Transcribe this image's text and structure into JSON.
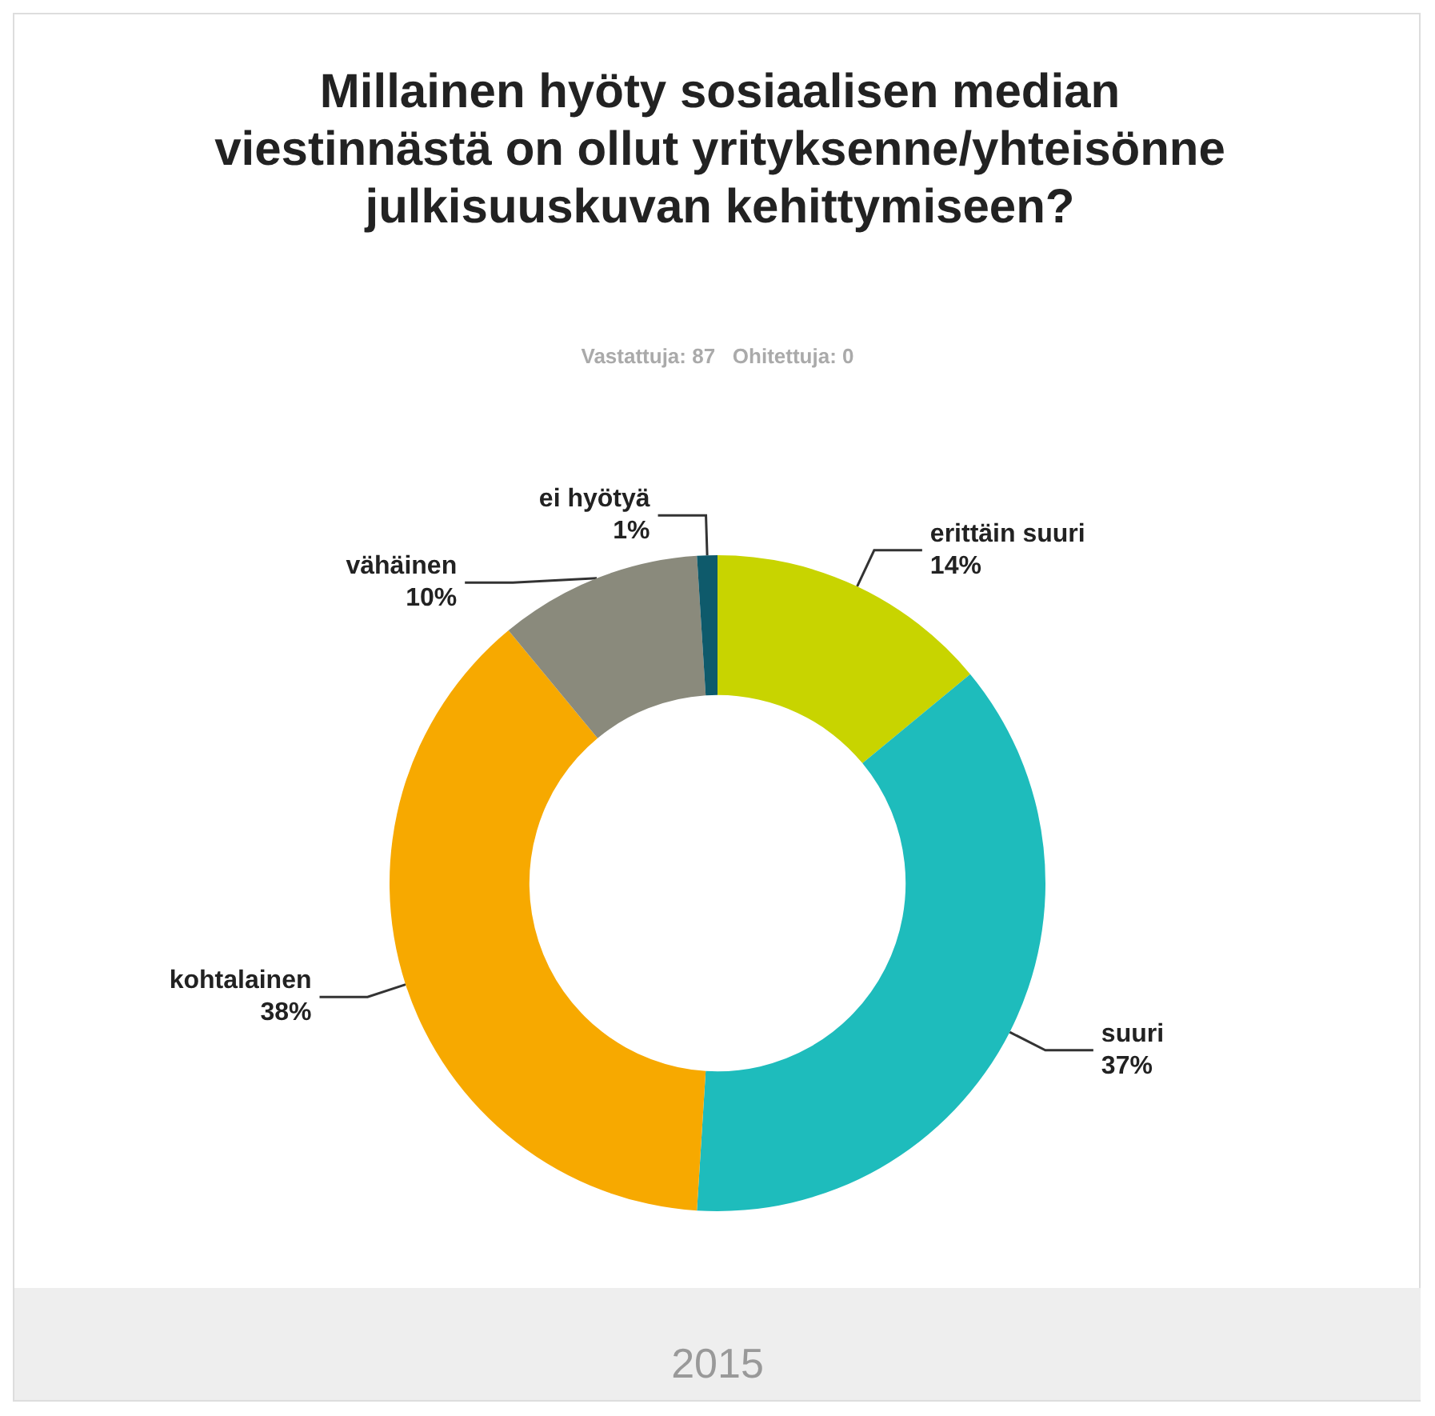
{
  "chart_data": {
    "type": "donut",
    "title": "Millainen hyöty sosiaalisen median viestinnästä on ollut yrityksenne/yhteisönne julkisuuskuvan kehittymiseen?",
    "subtitle": "Vastattuja: 87   Ohitettuja: 0",
    "categories": [
      "erittäin suuri",
      "suuri",
      "kohtalainen",
      "vähäinen",
      "ei hyötyä"
    ],
    "values": [
      14,
      37,
      38,
      10,
      1
    ],
    "value_labels": [
      "14%",
      "37%",
      "38%",
      "10%",
      "1%"
    ],
    "colors": [
      "#c8d400",
      "#1ebcbc",
      "#f7a900",
      "#8a8a7c",
      "#0e5a6b"
    ],
    "legend": false,
    "annotations": [
      "2015"
    ]
  }
}
